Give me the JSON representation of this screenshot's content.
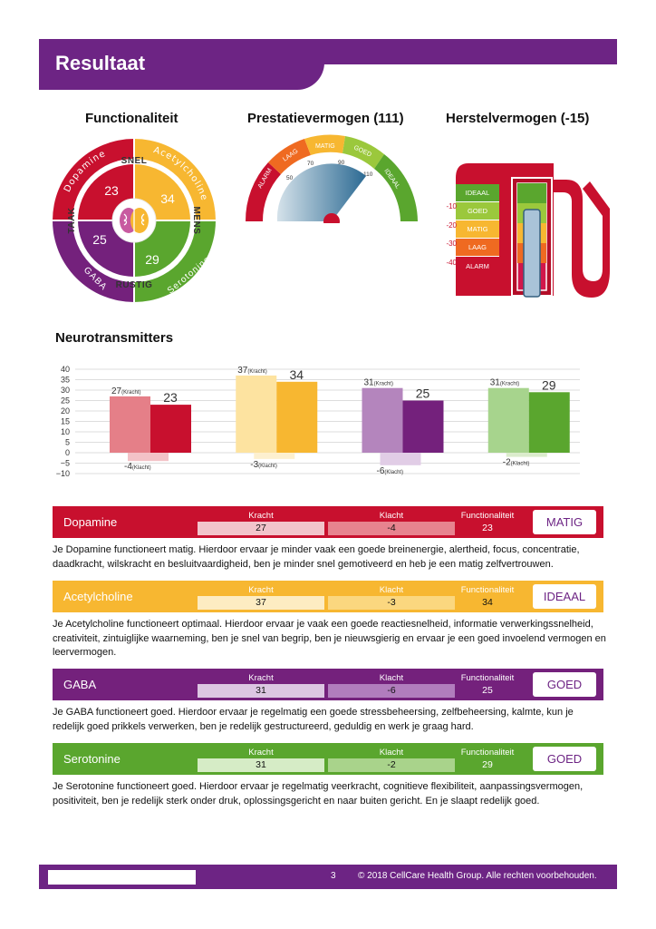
{
  "header": {
    "title": "Resultaat"
  },
  "functionaliteit": {
    "title": "Functionaliteit",
    "ring_labels": {
      "dopamine": "Dopamine",
      "acetylcholine": "Acetylcholine",
      "gaba": "GABA",
      "serotonine": "Serotonine"
    },
    "axis_labels": {
      "snel": "SNEL",
      "mens": "MENS",
      "rustig": "RUSTIG",
      "taak": "TAAK"
    },
    "values": {
      "dopamine": "23",
      "acetylcholine": "34",
      "gaba": "25",
      "serotonine": "29"
    }
  },
  "prestatie": {
    "title": "Prestatievermogen (111)",
    "zones": [
      "ALARM",
      "LAAG",
      "MATIG",
      "GOED",
      "IDEAAL"
    ],
    "ticks": [
      "50",
      "70",
      "90",
      "110"
    ],
    "value": 111
  },
  "herstel": {
    "title": "Herstelvermogen (-15)",
    "scale": [
      "-10",
      "-20",
      "-30",
      "-40"
    ],
    "zones": [
      "IDEAAL",
      "GOED",
      "MATIG",
      "LAAG",
      "ALARM"
    ],
    "value": -15
  },
  "neurotransmitters": {
    "title": "Neurotransmitters"
  },
  "chart_data": {
    "type": "bar",
    "categories": [
      "Dopamine",
      "Acetylcholine",
      "GABA",
      "Serotonine"
    ],
    "y_ticks": [
      "40",
      "35",
      "30",
      "25",
      "20",
      "15",
      "10",
      "5",
      "0",
      "−5",
      "−10"
    ],
    "ylim": [
      -10,
      40
    ],
    "grid": true,
    "kracht_tag": "(Kracht)",
    "klacht_tag": "(Klacht)",
    "series": [
      {
        "key": "kracht",
        "values": [
          27,
          37,
          31,
          31
        ]
      },
      {
        "key": "functionaliteit",
        "values": [
          23,
          34,
          25,
          29
        ]
      },
      {
        "key": "klacht",
        "values": [
          -4,
          -3,
          -6,
          -2
        ]
      }
    ]
  },
  "rows": [
    {
      "name": "Dopamine",
      "kracht_label": "Kracht",
      "kracht": "27",
      "klacht_label": "Klacht",
      "klacht": "-4",
      "func_label": "Functionaliteit",
      "func": "23",
      "status": "MATIG",
      "desc": "Je Dopamine functioneert matig. Hierdoor ervaar je minder vaak een goede breinenergie, alertheid, focus, concentratie, daadkracht, wilskracht en besluitvaardigheid, ben je minder snel gemotiveerd en heb je een matig zelfvertrouwen."
    },
    {
      "name": "Acetylcholine",
      "kracht_label": "Kracht",
      "kracht": "37",
      "klacht_label": "Klacht",
      "klacht": "-3",
      "func_label": "Functionaliteit",
      "func": "34",
      "status": "IDEAAL",
      "desc": "Je Acetylcholine functioneert optimaal. Hierdoor ervaar je vaak een goede reactiesnelheid, informatie verwerkingssnelheid, creativiteit, zintuiglijke waarneming, ben je snel van begrip, ben je nieuwsgierig en ervaar je een goed invoelend vermogen en leervermogen."
    },
    {
      "name": "GABA",
      "kracht_label": "Kracht",
      "kracht": "31",
      "klacht_label": "Klacht",
      "klacht": "-6",
      "func_label": "Functionaliteit",
      "func": "25",
      "status": "GOED",
      "desc": "Je GABA functioneert goed. Hierdoor ervaar je regelmatig een goede stressbeheersing, zelfbeheersing, kalmte, kun je redelijk goed prikkels verwerken, ben je redelijk gestructureerd, geduldig en werk je graag hard."
    },
    {
      "name": "Serotonine",
      "kracht_label": "Kracht",
      "kracht": "31",
      "klacht_label": "Klacht",
      "klacht": "-2",
      "func_label": "Functionaliteit",
      "func": "29",
      "status": "GOED",
      "desc": "Je Serotonine functioneert goed. Hierdoor ervaar je regelmatig veerkracht, cognitieve flexibiliteit, aanpassingsvermogen, positiviteit, ben je redelijk sterk onder druk, oplossingsgericht en naar buiten gericht. En je slaapt redelijk goed."
    }
  ],
  "footer": {
    "page": "3",
    "copyright": "© 2018 CellCare Health Group. Alle rechten voorbehouden."
  },
  "colors": {
    "purple": "#6d2484",
    "red": "#c8102e",
    "yellow": "#f7b731",
    "gaba": "#74217c",
    "green": "#5aa62e",
    "orange": "#ef6a21"
  }
}
